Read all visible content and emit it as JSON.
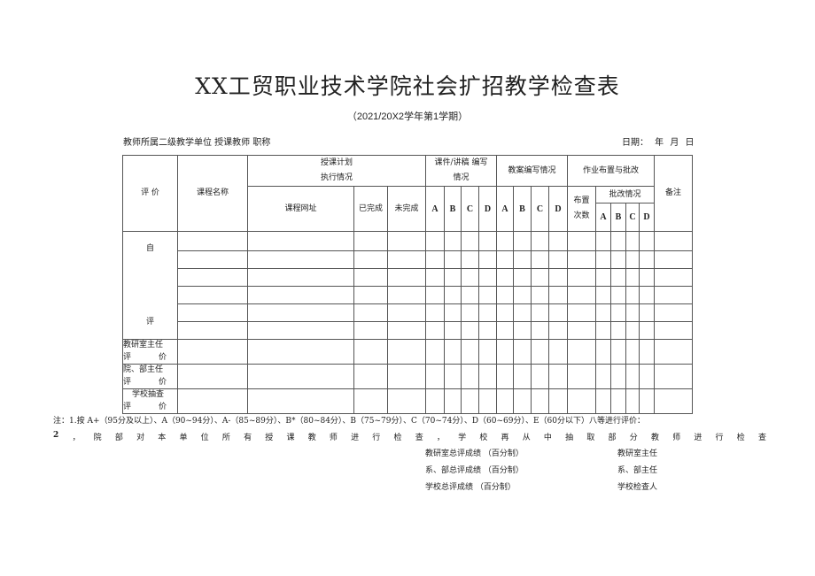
{
  "title": "XX工贸职业技术学院社会扩招教学检查表",
  "subtitle": "（2021/20X2学年第1学期）",
  "meta": {
    "left": "教师所属二级教学单位 授课教师 职称",
    "right": "日期： 年 月 日"
  },
  "table": {
    "h_eval": "评 价",
    "h_course": "课程名称",
    "h_plan": [
      "授课计划",
      "执行情况"
    ],
    "h_courseware": [
      "课件/讲稿 编写",
      "情况"
    ],
    "h_lesson": "教案编写情况",
    "h_homework": "作业布置与批改",
    "h_remark": "备注",
    "h_url": "课程网址",
    "h_done": "已完成",
    "h_undone": "未完成",
    "grades": [
      "A",
      "B",
      "C",
      "D"
    ],
    "h_assign": [
      "布置",
      "次数"
    ],
    "h_correct": "批改情况",
    "self_eval": [
      "自",
      "评"
    ],
    "row_labels": [
      [
        "教研室主任",
        "评",
        "价"
      ],
      [
        "院、部主任",
        "评",
        "价"
      ],
      [
        "学校抽查",
        "评",
        "价"
      ]
    ]
  },
  "notes": {
    "note1": "注：1.按 A+（95分及以上）、A（90~94分）、A-（85~89分）、B*（80~84分）、B（75~79分）、C（70~74分）、D（60~69分）、E（60分以下）八等进行评价：",
    "note2": [
      "2",
      "，",
      "院",
      "部",
      "对",
      "本",
      "单",
      "位",
      "所",
      "有",
      "授",
      "课",
      "教",
      "师",
      "进",
      "行",
      "检",
      "查",
      "，",
      "学",
      "校",
      "再",
      "从",
      "中",
      "抽",
      "取",
      "部",
      "分",
      "教",
      "师",
      "进",
      "行",
      "检",
      "查"
    ]
  },
  "signatures": [
    {
      "score": "教研室总评成绩 （百分制）",
      "signer": "教研室主任"
    },
    {
      "score": "系、部总评成绩 （百分制）",
      "signer": "系、部主任"
    },
    {
      "score": "学校总评成绩 （百分制）",
      "signer": "学校检查人"
    }
  ]
}
